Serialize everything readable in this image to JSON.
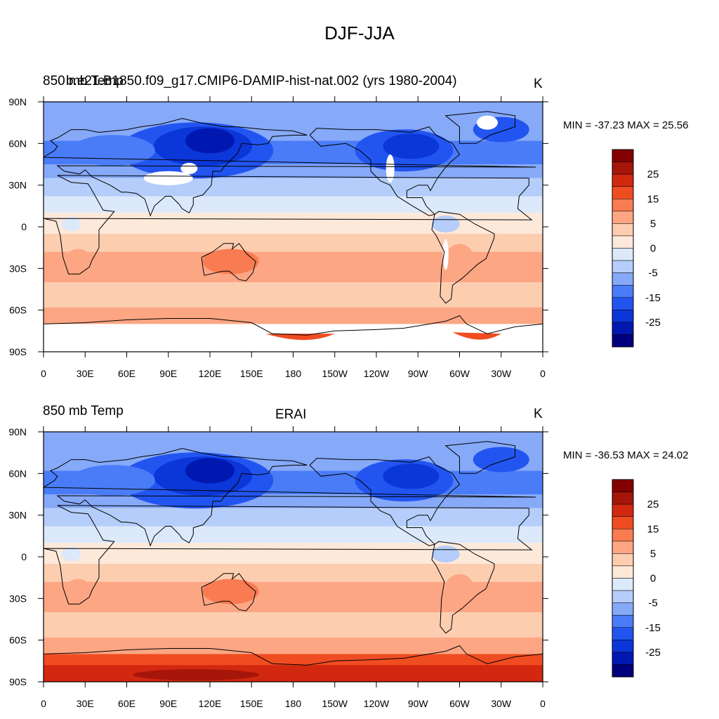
{
  "title": "DJF-JJA",
  "panels": [
    {
      "left_string": "850 mb Temp",
      "center_string": "b.e21.B1850.f09_g17.CMIP6-DAMIP-hist-nat.002 (yrs 1980-2004)",
      "right_string": "K",
      "stats": "MIN = -37.23 MAX =  25.56",
      "lat_ticks": [
        "90N",
        "60N",
        "30N",
        "0",
        "30S",
        "60S",
        "90S"
      ],
      "lon_ticks": [
        "0",
        "30E",
        "60E",
        "90E",
        "120E",
        "150E",
        "180",
        "150W",
        "120W",
        "90W",
        "60W",
        "30W",
        "0"
      ],
      "colorbar_labels": [
        "25",
        "15",
        "5",
        "0",
        "-5",
        "-15",
        "-25"
      ]
    },
    {
      "left_string": "850 mb Temp",
      "center_string": "ERAI",
      "right_string": "K",
      "stats": "MIN = -36.53 MAX =  24.02",
      "lat_ticks": [
        "90N",
        "60N",
        "30N",
        "0",
        "30S",
        "60S",
        "90S"
      ],
      "lon_ticks": [
        "0",
        "30E",
        "60E",
        "90E",
        "120E",
        "150E",
        "180",
        "150W",
        "120W",
        "90W",
        "60W",
        "30W",
        "0"
      ],
      "colorbar_labels": [
        "25",
        "15",
        "5",
        "0",
        "-5",
        "-15",
        "-25"
      ]
    }
  ],
  "colorbar_colors": [
    "#00007d",
    "#0018b0",
    "#0b36d8",
    "#2255f0",
    "#4a7cf8",
    "#86a9f8",
    "#b5cdfa",
    "#dbe9fb",
    "#fde9da",
    "#fdcdb0",
    "#fca684",
    "#f97b52",
    "#f04c22",
    "#d2280f",
    "#a6150a",
    "#850000"
  ],
  "chart_data": [
    {
      "type": "heatmap",
      "title": "DJF-JJA",
      "subtitle": "b.e21.B1850.f09_g17.CMIP6-DAMIP-hist-nat.002 (yrs 1980-2004)",
      "variable": "850 mb Temp",
      "units": "K",
      "min": -37.23,
      "max": 25.56,
      "x_range": [
        0,
        360
      ],
      "y_range": [
        -90,
        90
      ],
      "levels": [
        -35,
        -30,
        -25,
        -20,
        -15,
        -10,
        -5,
        0,
        5,
        10,
        15,
        20,
        25,
        30,
        35
      ],
      "missing_regions": [
        "Tibetan Plateau",
        "Greenland",
        "Rocky Mountains",
        "Andes",
        "Antarctica"
      ]
    },
    {
      "type": "heatmap",
      "title": "DJF-JJA",
      "subtitle": "ERAI",
      "variable": "850 mb Temp",
      "units": "K",
      "min": -36.53,
      "max": 24.02,
      "x_range": [
        0,
        360
      ],
      "y_range": [
        -90,
        90
      ],
      "levels": [
        -35,
        -30,
        -25,
        -20,
        -15,
        -10,
        -5,
        0,
        5,
        10,
        15,
        20,
        25,
        30,
        35
      ]
    }
  ]
}
